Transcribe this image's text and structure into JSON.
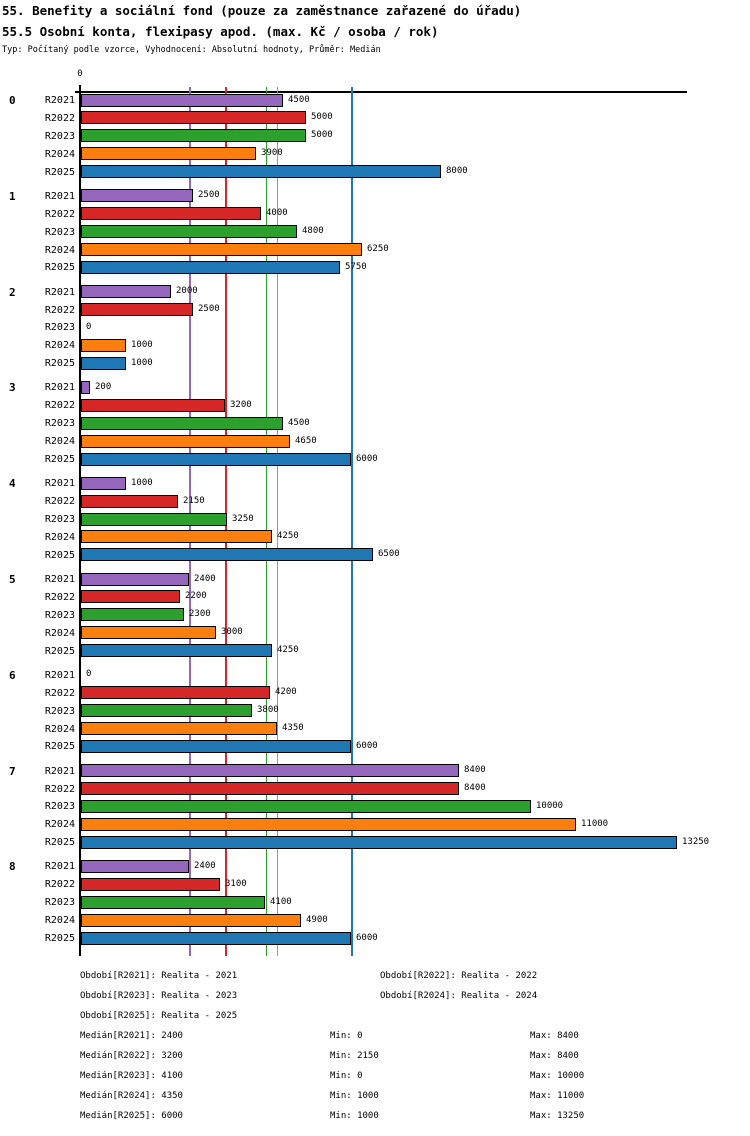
{
  "title": "55. Benefity a sociální fond (pouze za zaměstnance zařazené do úřadu)",
  "subtitle": "55.5 Osobní konta, flexipasy apod. (max. Kč / osoba / rok)",
  "meta": "Typ: Počítaný podle vzorce, Vyhodnocení: Absolutní hodnoty, Průměr: Medián",
  "colors": {
    "axis": "#000000",
    "R2021": "#9467bd",
    "R2022": "#d62728",
    "R2023": "#2ca02c",
    "R2024": "#ff7f0e",
    "R2025": "#1f77b4"
  },
  "chart_data": {
    "type": "bar",
    "orientation": "horizontal",
    "x_zero_label": "0",
    "xlim": [
      0,
      13556
    ],
    "grid": false,
    "categories": [
      "0",
      "1",
      "2",
      "3",
      "4",
      "5",
      "6",
      "7",
      "8"
    ],
    "series": [
      {
        "name": "R2021",
        "color": "#9467bd",
        "median": 2400,
        "values": [
          4500,
          2500,
          2000,
          200,
          1000,
          2400,
          0,
          8400,
          2400
        ]
      },
      {
        "name": "R2022",
        "color": "#d62728",
        "median": 3200,
        "values": [
          5000,
          4000,
          2500,
          3200,
          2150,
          2200,
          4200,
          8400,
          3100
        ]
      },
      {
        "name": "R2023",
        "color": "#2ca02c",
        "median": 4100,
        "values": [
          5000,
          4800,
          0,
          4500,
          3250,
          2300,
          3800,
          10000,
          4100
        ]
      },
      {
        "name": "R2024",
        "color": "#ff7f0e",
        "median": 4350,
        "values": [
          3900,
          6250,
          1000,
          4650,
          4250,
          3000,
          4350,
          11000,
          4900
        ]
      },
      {
        "name": "R2025",
        "color": "#1f77b4",
        "median": 6000,
        "values": [
          8000,
          5750,
          1000,
          6000,
          6500,
          4250,
          6000,
          13250,
          6000
        ]
      }
    ]
  },
  "legend": {
    "items": [
      "Období[R2021]: Realita - 2021",
      "Období[R2022]: Realita - 2022",
      "Období[R2023]: Realita - 2023",
      "Období[R2024]: Realita - 2024",
      "Období[R2025]: Realita - 2025"
    ]
  },
  "stats": {
    "rows": [
      {
        "median": "Medián[R2021]: 2400",
        "min": "Min: 0",
        "max": "Max: 8400"
      },
      {
        "median": "Medián[R2022]: 3200",
        "min": "Min: 2150",
        "max": "Max: 8400"
      },
      {
        "median": "Medián[R2023]: 4100",
        "min": "Min: 0",
        "max": "Max: 10000"
      },
      {
        "median": "Medián[R2024]: 4350",
        "min": "Min: 1000",
        "max": "Max: 11000"
      },
      {
        "median": "Medián[R2025]: 6000",
        "min": "Min: 1000",
        "max": "Max: 13250"
      }
    ]
  }
}
